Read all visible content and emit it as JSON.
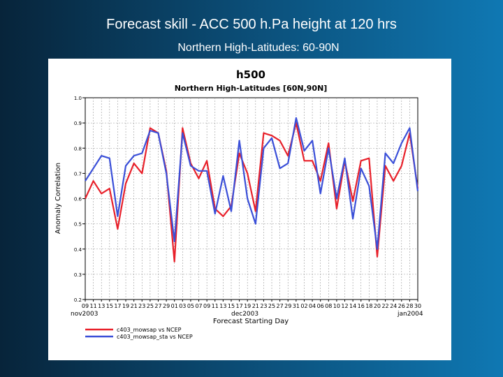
{
  "slide": {
    "title": "Forecast skill - ACC 500 h.Pa height at 120 hrs",
    "subtitle": "Northern High-Latitudes: 60-90N"
  },
  "chart_data": {
    "type": "line",
    "title": "h500",
    "subtitle": "Northern High-Latitudes [60N,90N]",
    "xlabel": "Forecast Starting Day",
    "ylabel": "Anomaly Correlation",
    "ylim": [
      0.2,
      1.0
    ],
    "y_ticks": [
      "1.0",
      "0.9",
      "0.8",
      "0.7",
      "0.6",
      "0.5",
      "0.4",
      "0.3",
      "0.2"
    ],
    "x_tick_labels": [
      "09",
      "11",
      "13",
      "15",
      "17",
      "19",
      "21",
      "23",
      "25",
      "27",
      "29",
      "01",
      "03",
      "05",
      "07",
      "09",
      "11",
      "13",
      "15",
      "17",
      "19",
      "21",
      "23",
      "25",
      "27",
      "29",
      "31",
      "02",
      "04",
      "06",
      "08",
      "10",
      "12",
      "14",
      "16",
      "18",
      "20",
      "22",
      "24",
      "26",
      "28",
      "30"
    ],
    "x_month_labels": [
      "nov2003",
      "dec2003",
      "jan2004"
    ],
    "grid": true,
    "legend_position": "bottom-left",
    "series": [
      {
        "name": "c403_mowsap vs NCEP",
        "color": "#e8202a",
        "values": [
          0.6,
          0.67,
          0.62,
          0.64,
          0.48,
          0.66,
          0.74,
          0.7,
          0.88,
          0.86,
          0.71,
          0.35,
          0.88,
          0.74,
          0.68,
          0.75,
          0.56,
          0.53,
          0.57,
          0.78,
          0.7,
          0.55,
          0.86,
          0.85,
          0.83,
          0.77,
          0.9,
          0.75,
          0.75,
          0.67,
          0.82,
          0.56,
          0.75,
          0.59,
          0.75,
          0.76,
          0.37,
          0.73,
          0.67,
          0.73,
          0.86,
          0.64
        ]
      },
      {
        "name": "c403_mowsap_sta vs NCEP",
        "color": "#3a4fd8",
        "values": [
          0.67,
          0.72,
          0.77,
          0.76,
          0.53,
          0.73,
          0.77,
          0.78,
          0.87,
          0.86,
          0.7,
          0.43,
          0.86,
          0.73,
          0.71,
          0.71,
          0.54,
          0.69,
          0.55,
          0.83,
          0.6,
          0.5,
          0.8,
          0.84,
          0.72,
          0.74,
          0.92,
          0.79,
          0.83,
          0.62,
          0.8,
          0.6,
          0.76,
          0.52,
          0.72,
          0.65,
          0.4,
          0.78,
          0.74,
          0.82,
          0.88,
          0.63
        ]
      }
    ]
  }
}
